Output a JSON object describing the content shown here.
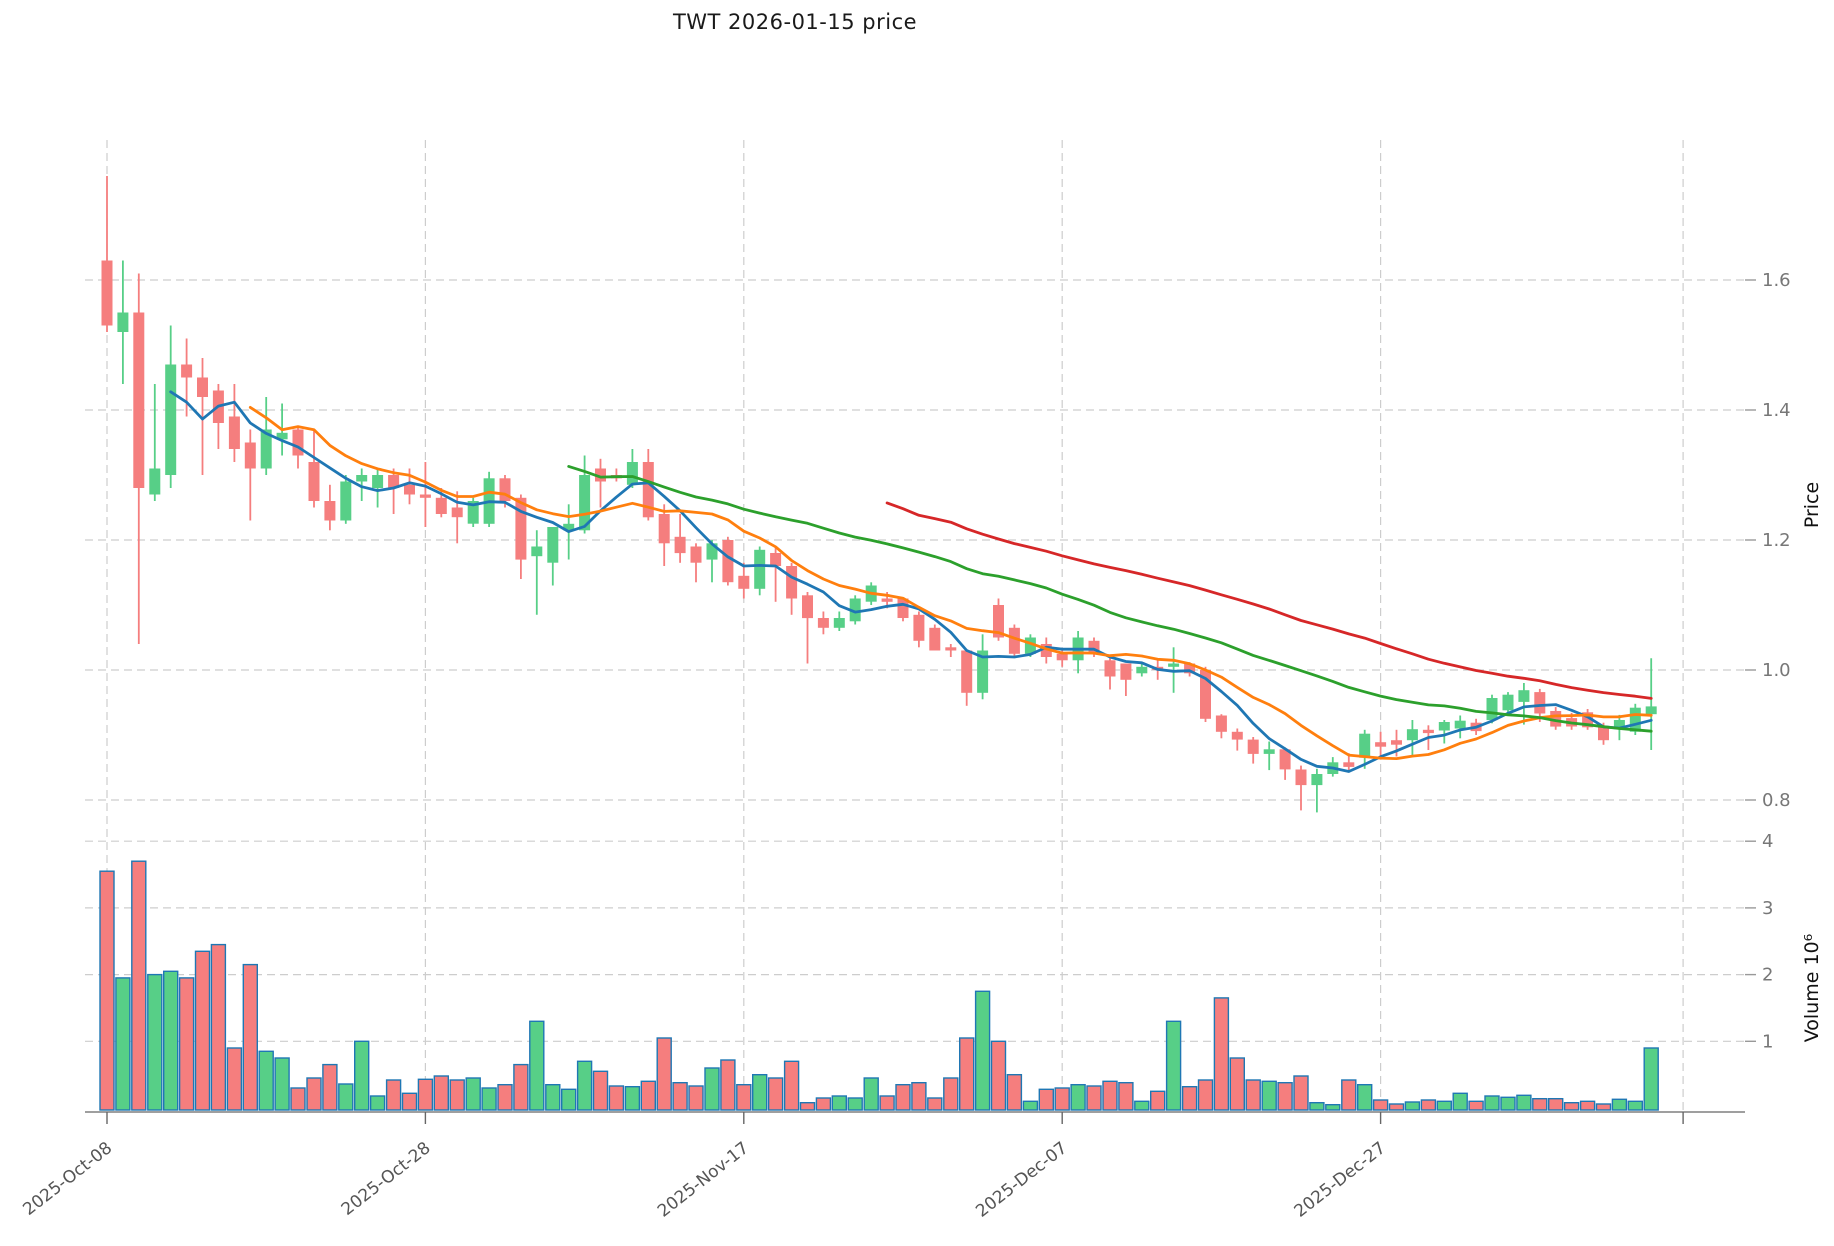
{
  "header": {
    "title": "TWT  2026-01-15  price"
  },
  "axes": {
    "price_axis_label": "Price",
    "volume_axis_label": "Volume  10⁶",
    "price_ticks": [
      1.6,
      1.4,
      1.2,
      1.0,
      0.8
    ],
    "volume_ticks": [
      4,
      3,
      2,
      1
    ]
  },
  "chart_data": {
    "type": "candlestick",
    "title": "TWT  2026-01-15  price",
    "x_frequency": "daily (calendar days)",
    "x_ticks": [
      {
        "index": 0,
        "label": "2025-Oct-08"
      },
      {
        "index": 20,
        "label": "2025-Oct-28"
      },
      {
        "index": 40,
        "label": "2025-Nov-17"
      },
      {
        "index": 60,
        "label": "2025-Dec-07"
      },
      {
        "index": 80,
        "label": "2025-Dec-27"
      },
      {
        "index": 99,
        "label": ""
      }
    ],
    "ylabel": "Price",
    "ylabel2": "Volume 10⁶",
    "price_range_shown": [
      0.74,
      1.81
    ],
    "volume_range_shown": [
      0,
      4300000
    ],
    "grid": true,
    "moving_averages": [
      {
        "window": 5,
        "color": "#1f77b4"
      },
      {
        "window": 10,
        "color": "#ff7f0e"
      },
      {
        "window": 30,
        "color": "#2ca02c"
      },
      {
        "window": 50,
        "color": "#d62728"
      }
    ],
    "ohlc": [
      [
        1.63,
        1.76,
        1.52,
        1.53
      ],
      [
        1.52,
        1.63,
        1.44,
        1.55
      ],
      [
        1.55,
        1.61,
        1.04,
        1.28
      ],
      [
        1.27,
        1.44,
        1.26,
        1.31
      ],
      [
        1.3,
        1.53,
        1.28,
        1.47
      ],
      [
        1.47,
        1.51,
        1.39,
        1.45
      ],
      [
        1.45,
        1.48,
        1.3,
        1.42
      ],
      [
        1.43,
        1.44,
        1.34,
        1.38
      ],
      [
        1.39,
        1.44,
        1.32,
        1.34
      ],
      [
        1.35,
        1.37,
        1.23,
        1.31
      ],
      [
        1.31,
        1.42,
        1.3,
        1.37
      ],
      [
        1.355,
        1.41,
        1.33,
        1.365
      ],
      [
        1.37,
        1.375,
        1.31,
        1.33
      ],
      [
        1.32,
        1.37,
        1.25,
        1.26
      ],
      [
        1.26,
        1.285,
        1.215,
        1.23
      ],
      [
        1.23,
        1.3,
        1.225,
        1.29
      ],
      [
        1.29,
        1.31,
        1.26,
        1.3
      ],
      [
        1.28,
        1.31,
        1.25,
        1.3
      ],
      [
        1.3,
        1.31,
        1.24,
        1.28
      ],
      [
        1.285,
        1.31,
        1.255,
        1.27
      ],
      [
        1.27,
        1.32,
        1.22,
        1.265
      ],
      [
        1.265,
        1.28,
        1.235,
        1.24
      ],
      [
        1.25,
        1.275,
        1.195,
        1.235
      ],
      [
        1.225,
        1.265,
        1.22,
        1.26
      ],
      [
        1.225,
        1.305,
        1.22,
        1.295
      ],
      [
        1.295,
        1.3,
        1.25,
        1.26
      ],
      [
        1.265,
        1.27,
        1.14,
        1.17
      ],
      [
        1.175,
        1.215,
        1.085,
        1.19
      ],
      [
        1.165,
        1.22,
        1.13,
        1.22
      ],
      [
        1.215,
        1.255,
        1.17,
        1.225
      ],
      [
        1.215,
        1.33,
        1.21,
        1.3
      ],
      [
        1.31,
        1.325,
        1.25,
        1.29
      ],
      [
        1.3,
        1.31,
        1.29,
        1.295
      ],
      [
        1.285,
        1.34,
        1.28,
        1.32
      ],
      [
        1.32,
        1.34,
        1.23,
        1.235
      ],
      [
        1.24,
        1.255,
        1.16,
        1.195
      ],
      [
        1.205,
        1.24,
        1.165,
        1.18
      ],
      [
        1.19,
        1.195,
        1.135,
        1.165
      ],
      [
        1.17,
        1.2,
        1.135,
        1.195
      ],
      [
        1.2,
        1.205,
        1.13,
        1.135
      ],
      [
        1.145,
        1.165,
        1.11,
        1.125
      ],
      [
        1.125,
        1.19,
        1.115,
        1.185
      ],
      [
        1.18,
        1.19,
        1.105,
        1.16
      ],
      [
        1.16,
        1.165,
        1.085,
        1.11
      ],
      [
        1.115,
        1.12,
        1.01,
        1.08
      ],
      [
        1.08,
        1.09,
        1.055,
        1.065
      ],
      [
        1.065,
        1.09,
        1.06,
        1.08
      ],
      [
        1.075,
        1.115,
        1.07,
        1.11
      ],
      [
        1.105,
        1.135,
        1.1,
        1.13
      ],
      [
        1.11,
        1.12,
        1.095,
        1.105
      ],
      [
        1.11,
        1.11,
        1.075,
        1.08
      ],
      [
        1.085,
        1.09,
        1.035,
        1.045
      ],
      [
        1.065,
        1.07,
        1.03,
        1.03
      ],
      [
        1.035,
        1.04,
        1.02,
        1.03
      ],
      [
        1.03,
        1.03,
        0.945,
        0.965
      ],
      [
        0.965,
        1.055,
        0.955,
        1.03
      ],
      [
        1.1,
        1.11,
        1.045,
        1.05
      ],
      [
        1.065,
        1.07,
        1.02,
        1.025
      ],
      [
        1.025,
        1.055,
        1.02,
        1.05
      ],
      [
        1.04,
        1.05,
        1.01,
        1.02
      ],
      [
        1.025,
        1.03,
        1.005,
        1.015
      ],
      [
        1.015,
        1.06,
        0.995,
        1.05
      ],
      [
        1.045,
        1.05,
        1.02,
        1.025
      ],
      [
        1.015,
        1.02,
        0.97,
        0.99
      ],
      [
        1.01,
        1.01,
        0.96,
        0.985
      ],
      [
        0.995,
        1.01,
        0.99,
        1.005
      ],
      [
        1.005,
        1.015,
        0.985,
        1.0
      ],
      [
        1.005,
        1.035,
        0.965,
        1.01
      ],
      [
        1.01,
        1.012,
        0.99,
        0.995
      ],
      [
        1.0,
        1.005,
        0.92,
        0.925
      ],
      [
        0.93,
        0.932,
        0.895,
        0.905
      ],
      [
        0.905,
        0.91,
        0.876,
        0.893
      ],
      [
        0.893,
        0.897,
        0.856,
        0.871
      ],
      [
        0.871,
        0.89,
        0.846,
        0.878
      ],
      [
        0.878,
        0.881,
        0.831,
        0.847
      ],
      [
        0.847,
        0.853,
        0.784,
        0.823
      ],
      [
        0.823,
        0.848,
        0.781,
        0.84
      ],
      [
        0.84,
        0.866,
        0.836,
        0.858
      ],
      [
        0.858,
        0.872,
        0.843,
        0.851
      ],
      [
        0.865,
        0.908,
        0.848,
        0.902
      ],
      [
        0.889,
        0.905,
        0.862,
        0.882
      ],
      [
        0.892,
        0.908,
        0.867,
        0.885
      ],
      [
        0.892,
        0.923,
        0.867,
        0.909
      ],
      [
        0.908,
        0.915,
        0.877,
        0.903
      ],
      [
        0.907,
        0.923,
        0.887,
        0.92
      ],
      [
        0.91,
        0.93,
        0.895,
        0.922
      ],
      [
        0.919,
        0.925,
        0.9,
        0.906
      ],
      [
        0.923,
        0.962,
        0.918,
        0.957
      ],
      [
        0.938,
        0.966,
        0.934,
        0.962
      ],
      [
        0.951,
        0.98,
        0.916,
        0.969
      ],
      [
        0.966,
        0.971,
        0.92,
        0.933
      ],
      [
        0.937,
        0.943,
        0.908,
        0.913
      ],
      [
        0.926,
        0.934,
        0.908,
        0.913
      ],
      [
        0.935,
        0.94,
        0.908,
        0.912
      ],
      [
        0.912,
        0.919,
        0.885,
        0.892
      ],
      [
        0.91,
        0.931,
        0.892,
        0.923
      ],
      [
        0.905,
        0.948,
        0.9,
        0.942
      ],
      [
        0.932,
        1.018,
        0.877,
        0.944
      ]
    ],
    "volume_millions": [
      3.55,
      1.95,
      3.7,
      2.0,
      2.05,
      1.95,
      2.35,
      2.45,
      0.9,
      2.15,
      0.85,
      0.75,
      0.3,
      0.45,
      0.65,
      0.36,
      1.0,
      0.18,
      0.42,
      0.22,
      0.43,
      0.48,
      0.42,
      0.45,
      0.3,
      0.35,
      0.65,
      1.3,
      0.35,
      0.28,
      0.7,
      0.55,
      0.33,
      0.32,
      0.4,
      1.05,
      0.38,
      0.33,
      0.6,
      0.72,
      0.35,
      0.5,
      0.45,
      0.7,
      0.08,
      0.15,
      0.18,
      0.15,
      0.45,
      0.18,
      0.35,
      0.38,
      0.15,
      0.45,
      1.05,
      1.75,
      1.0,
      0.5,
      0.1,
      0.28,
      0.3,
      0.35,
      0.33,
      0.4,
      0.38,
      0.1,
      0.25,
      1.3,
      0.32,
      0.42,
      1.65,
      0.75,
      0.42,
      0.4,
      0.38,
      0.48,
      0.08,
      0.05,
      0.42,
      0.35,
      0.12,
      0.06,
      0.09,
      0.12,
      0.1,
      0.22,
      0.1,
      0.18,
      0.16,
      0.19,
      0.14,
      0.14,
      0.08,
      0.1,
      0.06,
      0.13,
      0.1,
      0.9
    ],
    "colors": {
      "up": "#57cf87",
      "down": "#f57e7e",
      "volume_bar_edge": "#1f77b4",
      "grid": "#cdcdcd",
      "tick_label": "#777777",
      "x_tick_label": "#555555",
      "spine": "#666666"
    }
  }
}
